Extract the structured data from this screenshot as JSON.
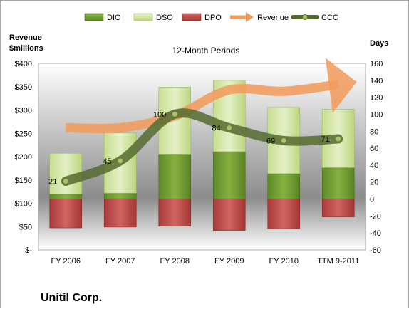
{
  "chart_data": {
    "type": "bar",
    "title": "12-Month Periods",
    "company": "Unitil Corp.",
    "left_axis_title": [
      "Revenue",
      "$millions"
    ],
    "right_axis_title": "Days",
    "categories": [
      "FY 2006",
      "FY 2007",
      "FY 2008",
      "FY 2009",
      "FY 2010",
      "TTM 9-2011"
    ],
    "left_axis": {
      "min": 0,
      "max": 400,
      "step": 50,
      "tick_labels": [
        "$-",
        "$50",
        "$100",
        "$150",
        "$200",
        "$250",
        "$300",
        "$350",
        "$400"
      ]
    },
    "right_axis": {
      "min": -60,
      "max": 160,
      "step": 20,
      "tick_labels": [
        "-60",
        "-40",
        "-20",
        "0",
        "20",
        "40",
        "60",
        "80",
        "100",
        "120",
        "140",
        "160"
      ]
    },
    "series": [
      {
        "name": "DIO",
        "axis": "right",
        "values": [
          6,
          7,
          53,
          56,
          30,
          37
        ],
        "color": "#6e9a30"
      },
      {
        "name": "DSO",
        "axis": "right",
        "values": [
          48,
          71,
          79,
          84,
          78,
          69
        ],
        "color": "#d4e6a8"
      },
      {
        "name": "DPO",
        "axis": "right",
        "values": [
          -34,
          -33,
          -32,
          -37,
          -35,
          -21
        ],
        "color": "#c0504d"
      },
      {
        "name": "Revenue",
        "axis": "left",
        "values": [
          262,
          262,
          287,
          343,
          340,
          355
        ],
        "color": "#f29a5a"
      },
      {
        "name": "CCC",
        "axis": "right",
        "values": [
          21,
          45,
          100,
          84,
          69,
          71
        ],
        "color": "#556b2f"
      }
    ],
    "data_labels": [
      "21",
      "45",
      "100",
      "84",
      "69",
      "71"
    ],
    "legend": {
      "placement": "top"
    },
    "grid": false
  }
}
